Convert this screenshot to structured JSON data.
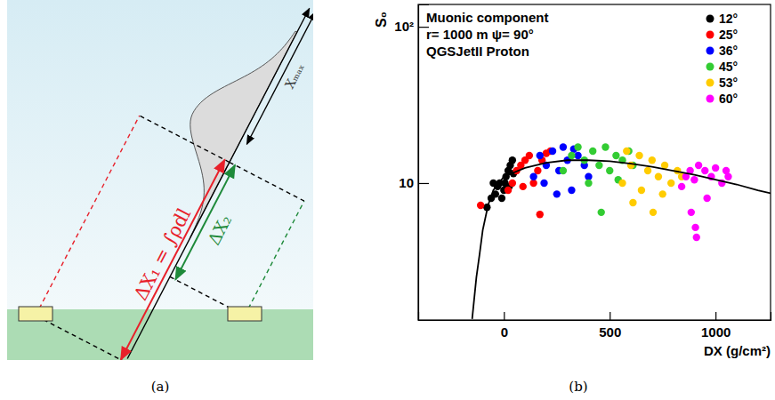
{
  "panel_labels": [
    "(a)",
    "(b)"
  ],
  "diagram": {
    "delta_x1_label": "ΔX₁ = ∫ρdl",
    "delta_x2_label": "ΔX₂",
    "xmax_label": "Xₘₐₓ"
  },
  "chart_data": {
    "type": "scatter",
    "annotations": [
      "Muonic component",
      "r= 1000 m  ψ= 90°",
      "QGSJetII Proton"
    ],
    "x_label": "DX (g/cm²)",
    "y_label": "S₀",
    "log": "y",
    "grid": false,
    "legend": "top-right",
    "xlim": [
      -405,
      1260
    ],
    "ylim": [
      1.33,
      139
    ],
    "xticks": [
      0,
      500,
      1000
    ],
    "yticks": [
      10,
      {
        "value": 100,
        "label": "10²"
      }
    ],
    "series": [
      {
        "name": "12°",
        "type": "scatter",
        "marker": "circle",
        "color": "#000000",
        "x": [
          -80,
          -60,
          -50,
          -40,
          -30,
          -20,
          -10,
          0,
          5,
          10,
          20,
          25,
          30,
          40,
          45
        ],
        "values": [
          7,
          8,
          10,
          8.5,
          9.5,
          10,
          8,
          9,
          10,
          11,
          12,
          9.5,
          13,
          14,
          11.5
        ]
      },
      {
        "name": "25°",
        "type": "scatter",
        "marker": "circle",
        "color": "#ff0000",
        "x": [
          -110,
          20,
          40,
          60,
          80,
          90,
          100,
          120,
          140,
          160,
          170,
          180,
          200,
          220
        ],
        "values": [
          7.2,
          9,
          10,
          12,
          13,
          9.5,
          14,
          15,
          10,
          12,
          6.3,
          14,
          15.5,
          16
        ]
      },
      {
        "name": "36°",
        "type": "scatter",
        "marker": "circle",
        "color": "#0000ff",
        "x": [
          140,
          170,
          190,
          200,
          230,
          250,
          260,
          280,
          300,
          320,
          330,
          350,
          380,
          400
        ],
        "values": [
          11,
          15,
          10,
          13,
          16,
          8.5,
          12,
          17,
          14,
          9,
          16.5,
          15,
          13,
          11
        ]
      },
      {
        "name": "45°",
        "type": "scatter",
        "marker": "circle",
        "color": "#33cc33",
        "x": [
          280,
          320,
          350,
          380,
          400,
          420,
          450,
          460,
          480,
          500,
          530,
          540,
          560,
          590,
          610
        ],
        "values": [
          12,
          15,
          17,
          14,
          10,
          16,
          13,
          6.5,
          17,
          12,
          15,
          10.5,
          14,
          16,
          13
        ]
      },
      {
        "name": "53°",
        "type": "scatter",
        "marker": "circle",
        "color": "#ffcc00",
        "x": [
          560,
          580,
          600,
          610,
          640,
          650,
          680,
          700,
          705,
          730,
          750,
          760,
          790,
          820,
          840
        ],
        "values": [
          10,
          16,
          13,
          7.5,
          15,
          9,
          12,
          14,
          6.5,
          11,
          8.5,
          13,
          10,
          12,
          11
        ]
      },
      {
        "name": "60°",
        "type": "scatter",
        "marker": "circle",
        "color": "#ff00ff",
        "x": [
          840,
          860,
          880,
          885,
          900,
          905,
          910,
          920,
          950,
          960,
          980,
          1000,
          1030,
          1050,
          1060
        ],
        "values": [
          9.5,
          11,
          12,
          6.5,
          10.5,
          5.2,
          4.5,
          13,
          12,
          8,
          11,
          12.5,
          10,
          12,
          11
        ]
      },
      {
        "type": "line",
        "line_style": "solid",
        "color": "#000000",
        "x": [
          -150,
          -130,
          -115,
          -100,
          -75,
          -50,
          0,
          100,
          200,
          300,
          400,
          500,
          600,
          700,
          800,
          900,
          1000,
          1100,
          1200,
          1260
        ],
        "values": [
          1.35,
          2.5,
          3.5,
          5,
          7.2,
          9,
          11,
          12.5,
          13.5,
          14,
          14,
          13.8,
          13.3,
          12.7,
          12,
          11.3,
          10.5,
          9.8,
          9,
          8.6
        ]
      }
    ]
  }
}
